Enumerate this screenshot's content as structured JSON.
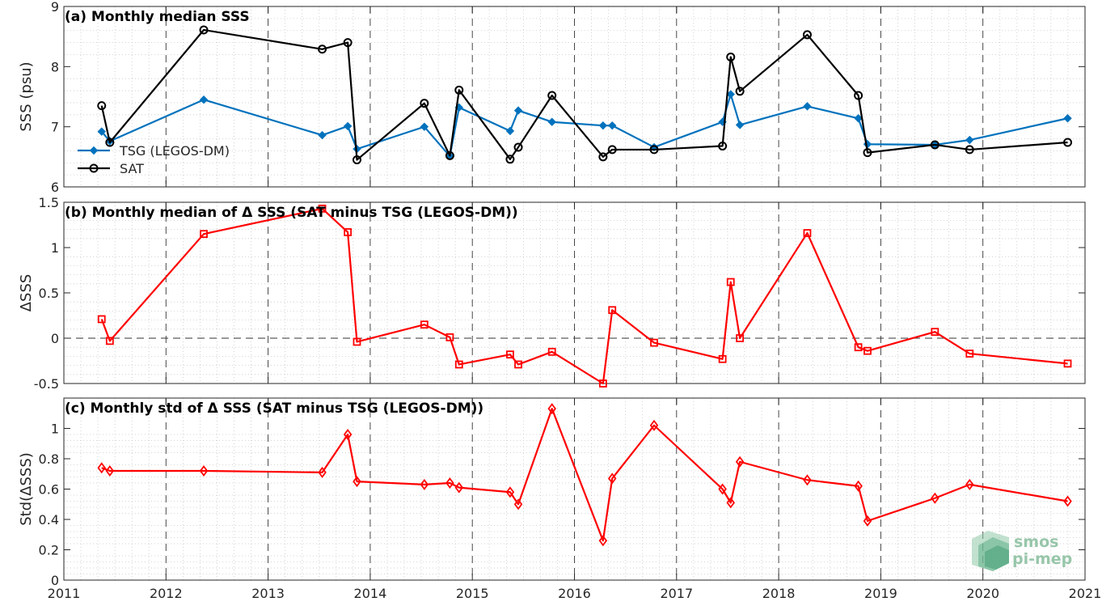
{
  "logo": {
    "line1": "smos",
    "line2": "pi-mep"
  },
  "chart_data": [
    {
      "type": "line",
      "title": "(a) Monthly median SSS",
      "ylabel": "SSS (psu)",
      "xlim": [
        2011,
        2021
      ],
      "ylim": [
        6,
        9
      ],
      "yticks": [
        6,
        7,
        8,
        9
      ],
      "grid": true,
      "legend": "bottom-left",
      "series": [
        {
          "name": "TSG (LEGOS-DM)",
          "color": "#0072BD",
          "marker": "diamond-filled",
          "x": [
            2011.37,
            2011.45,
            2012.37,
            2013.53,
            2013.78,
            2013.87,
            2014.53,
            2014.78,
            2014.87,
            2015.37,
            2015.45,
            2015.78,
            2016.28,
            2016.37,
            2016.78,
            2017.45,
            2017.53,
            2017.62,
            2018.28,
            2018.78,
            2018.87,
            2019.53,
            2019.87,
            2020.83
          ],
          "y": [
            6.92,
            6.76,
            7.45,
            6.86,
            7.01,
            6.63,
            7.0,
            6.51,
            7.32,
            6.93,
            7.27,
            7.08,
            7.02,
            7.02,
            6.66,
            7.08,
            7.54,
            7.03,
            7.34,
            7.14,
            6.71,
            6.7,
            6.78,
            7.14
          ]
        },
        {
          "name": "SAT",
          "color": "#000000",
          "marker": "circle-open",
          "x": [
            2011.37,
            2011.45,
            2012.37,
            2013.53,
            2013.78,
            2013.87,
            2014.53,
            2014.78,
            2014.87,
            2015.37,
            2015.45,
            2015.78,
            2016.28,
            2016.37,
            2016.78,
            2017.45,
            2017.53,
            2017.62,
            2018.28,
            2018.78,
            2018.87,
            2019.53,
            2019.87,
            2020.83
          ],
          "y": [
            7.35,
            6.74,
            8.61,
            8.29,
            8.4,
            6.45,
            7.39,
            6.52,
            7.61,
            6.46,
            6.66,
            7.52,
            6.5,
            6.62,
            6.62,
            6.68,
            8.16,
            7.59,
            8.53,
            7.52,
            6.57,
            6.7,
            6.62,
            6.74
          ]
        }
      ]
    },
    {
      "type": "line",
      "title": "(b) Monthly median of Δ SSS (SAT minus TSG (LEGOS-DM))",
      "ylabel": "ΔSSS",
      "xlim": [
        2011,
        2021
      ],
      "ylim": [
        -0.5,
        1.5
      ],
      "yticks": [
        -0.5,
        0,
        0.5,
        1,
        1.5
      ],
      "ytick_labels": [
        "-0.5",
        "0",
        "0.5",
        "1",
        "1.5"
      ],
      "zero_line": true,
      "grid": true,
      "series": [
        {
          "color": "#FF0000",
          "marker": "square-open",
          "x": [
            2011.37,
            2011.45,
            2012.37,
            2013.53,
            2013.78,
            2013.87,
            2014.53,
            2014.78,
            2014.87,
            2015.37,
            2015.45,
            2015.78,
            2016.28,
            2016.37,
            2016.78,
            2017.45,
            2017.53,
            2017.62,
            2018.28,
            2018.78,
            2018.87,
            2019.53,
            2019.87,
            2020.83
          ],
          "y": [
            0.21,
            -0.03,
            1.15,
            1.43,
            1.17,
            -0.04,
            0.15,
            0.01,
            -0.29,
            -0.18,
            -0.29,
            -0.15,
            -0.5,
            0.31,
            -0.05,
            -0.23,
            0.62,
            0.0,
            1.16,
            -0.1,
            -0.14,
            0.07,
            -0.17,
            -0.28
          ]
        }
      ]
    },
    {
      "type": "line",
      "title": "(c) Monthly std of Δ SSS (SAT minus TSG (LEGOS-DM))",
      "ylabel": "Std(ΔSSS)",
      "xlabel": "",
      "xlim": [
        2011,
        2021
      ],
      "ylim": [
        0,
        1.2
      ],
      "yticks": [
        0,
        0.2,
        0.4,
        0.6,
        0.8,
        1
      ],
      "ytick_labels": [
        "0",
        "0.2",
        "0.4",
        "0.6",
        "0.8",
        "1"
      ],
      "xticks": [
        2011,
        2012,
        2013,
        2014,
        2015,
        2016,
        2017,
        2018,
        2019,
        2020,
        2021
      ],
      "grid": true,
      "series": [
        {
          "color": "#FF0000",
          "marker": "diamond-open",
          "x": [
            2011.37,
            2011.45,
            2012.37,
            2013.53,
            2013.78,
            2013.87,
            2014.53,
            2014.78,
            2014.87,
            2015.37,
            2015.45,
            2015.78,
            2016.28,
            2016.37,
            2016.78,
            2017.45,
            2017.53,
            2017.62,
            2018.28,
            2018.78,
            2018.87,
            2019.53,
            2019.87,
            2020.83
          ],
          "y": [
            0.74,
            0.72,
            0.72,
            0.71,
            0.96,
            0.65,
            0.63,
            0.64,
            0.61,
            0.58,
            0.5,
            1.13,
            0.26,
            0.67,
            1.02,
            0.6,
            0.51,
            0.78,
            0.66,
            0.62,
            0.39,
            0.54,
            0.63,
            0.52
          ]
        }
      ]
    }
  ]
}
